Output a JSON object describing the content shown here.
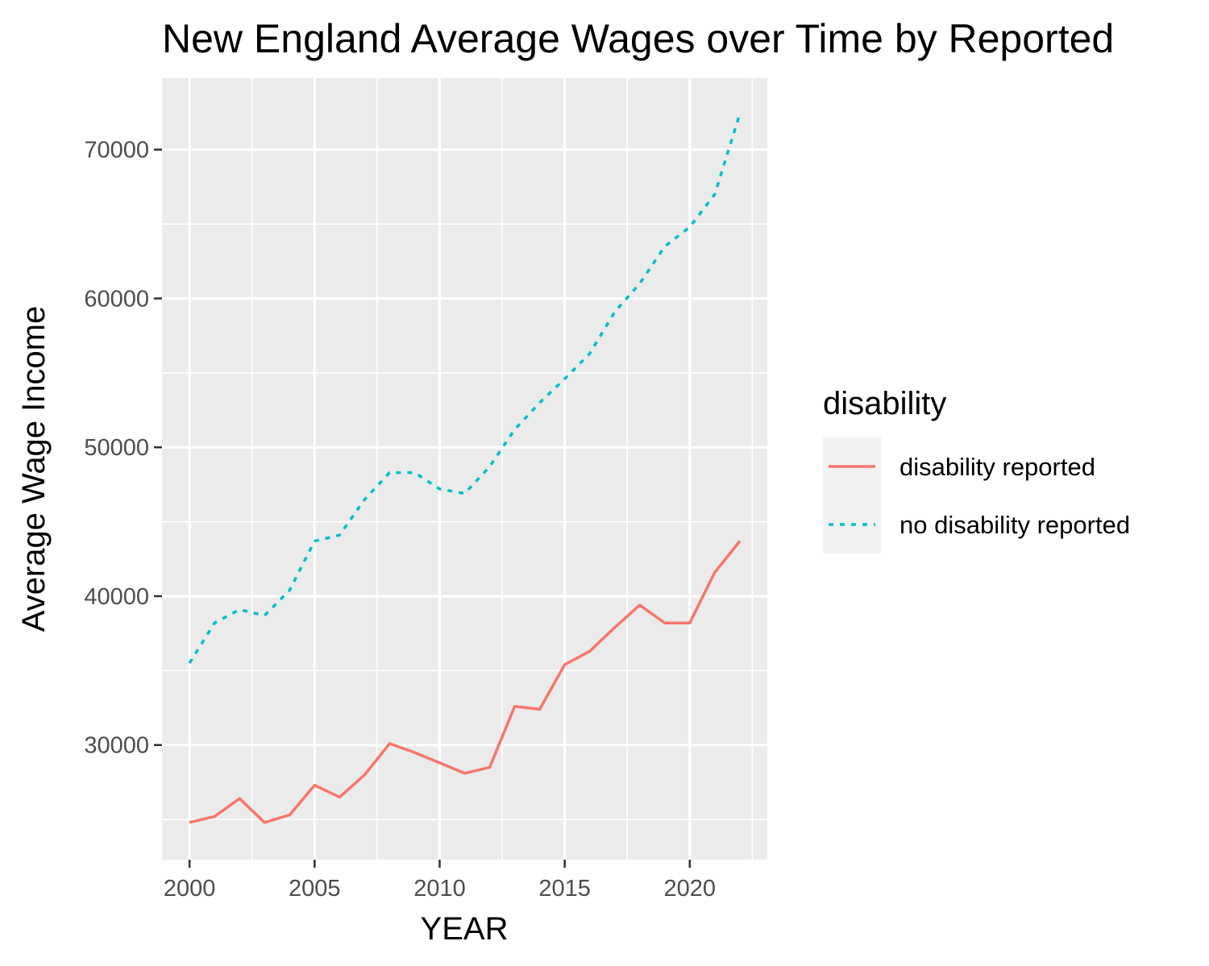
{
  "chart_data": {
    "type": "line",
    "title": "New England Average Wages over Time by Reported",
    "xlabel": "YEAR",
    "ylabel": "Average Wage Income",
    "x": [
      2000,
      2001,
      2002,
      2003,
      2004,
      2005,
      2006,
      2007,
      2008,
      2009,
      2010,
      2011,
      2012,
      2013,
      2014,
      2015,
      2016,
      2017,
      2018,
      2019,
      2020,
      2021,
      2022
    ],
    "xlim": [
      1998.9,
      2023.1
    ],
    "ylim": [
      22300,
      74800
    ],
    "x_ticks": [
      2000,
      2005,
      2010,
      2015,
      2020
    ],
    "x_tick_labels": [
      "2000",
      "2005",
      "2010",
      "2015",
      "2020"
    ],
    "y_ticks": [
      30000,
      40000,
      50000,
      60000,
      70000
    ],
    "y_tick_labels": [
      "30000",
      "40000",
      "50000",
      "60000",
      "70000"
    ],
    "grid": true,
    "legend": {
      "title": "disability",
      "placement": "right"
    },
    "series": [
      {
        "name": "disability reported",
        "color": "#F8766D",
        "style": "solid",
        "values": [
          24800,
          25200,
          26400,
          24800,
          25300,
          27300,
          26500,
          28000,
          30100,
          29500,
          28800,
          28100,
          28500,
          32600,
          32400,
          35400,
          36300,
          37900,
          39400,
          38200,
          38200,
          41600,
          43700
        ]
      },
      {
        "name": "no disability reported",
        "color": "#00BFC4",
        "style": "dashed",
        "values": [
          35500,
          38200,
          39100,
          38700,
          40400,
          43700,
          44100,
          46500,
          48300,
          48300,
          47200,
          46900,
          48700,
          51200,
          53000,
          54600,
          56300,
          59100,
          61000,
          63500,
          64800,
          67000,
          72400
        ]
      }
    ]
  }
}
